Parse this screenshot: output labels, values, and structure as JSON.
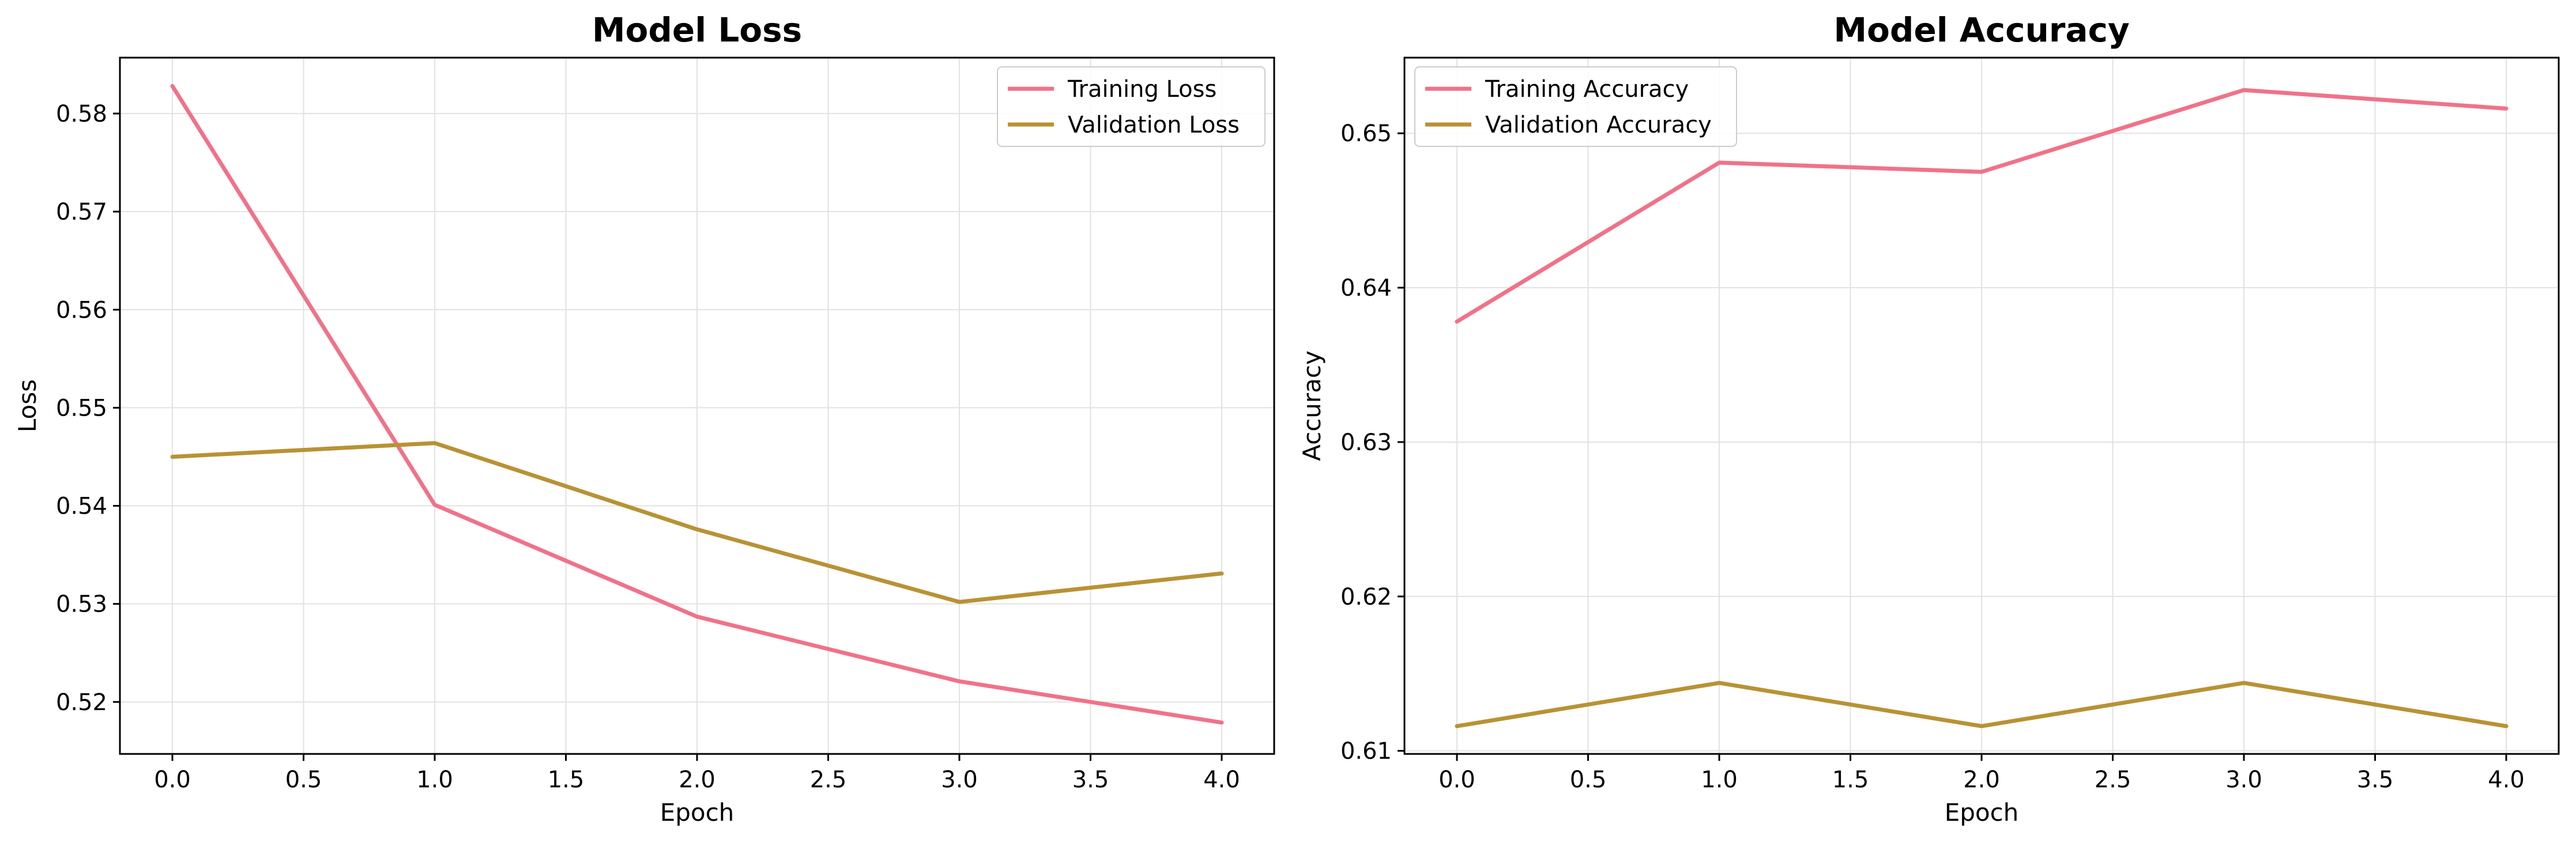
{
  "chart_data": [
    {
      "id": "loss",
      "type": "line",
      "title": "Model Loss",
      "xlabel": "Epoch",
      "ylabel": "Loss",
      "xlim": [
        -0.2,
        4.2
      ],
      "ylim": [
        0.5147,
        0.5857
      ],
      "xticks": [
        0.0,
        0.5,
        1.0,
        1.5,
        2.0,
        2.5,
        3.0,
        3.5,
        4.0
      ],
      "xtick_labels": [
        "0.0",
        "0.5",
        "1.0",
        "1.5",
        "2.0",
        "2.5",
        "3.0",
        "3.5",
        "4.0"
      ],
      "yticks": [
        0.52,
        0.53,
        0.54,
        0.55,
        0.56,
        0.57,
        0.58
      ],
      "ytick_labels": [
        "0.52",
        "0.53",
        "0.54",
        "0.55",
        "0.56",
        "0.57",
        "0.58"
      ],
      "grid": true,
      "legend_position": "top-right",
      "x": [
        0,
        1,
        2,
        3,
        4
      ],
      "series": [
        {
          "name": "Training Loss",
          "color": "#f07289",
          "values": [
            0.5828,
            0.5401,
            0.5287,
            0.5221,
            0.5179
          ]
        },
        {
          "name": "Validation Loss",
          "color": "#b89234",
          "values": [
            0.545,
            0.5464,
            0.5376,
            0.5302,
            0.5331
          ]
        }
      ]
    },
    {
      "id": "acc",
      "type": "line",
      "title": "Model Accuracy",
      "xlabel": "Epoch",
      "ylabel": "Accuracy",
      "xlim": [
        -0.2,
        4.2
      ],
      "ylim": [
        0.6098,
        0.6549
      ],
      "xticks": [
        0.0,
        0.5,
        1.0,
        1.5,
        2.0,
        2.5,
        3.0,
        3.5,
        4.0
      ],
      "xtick_labels": [
        "0.0",
        "0.5",
        "1.0",
        "1.5",
        "2.0",
        "2.5",
        "3.0",
        "3.5",
        "4.0"
      ],
      "yticks": [
        0.61,
        0.62,
        0.63,
        0.64,
        0.65
      ],
      "ytick_labels": [
        "0.61",
        "0.62",
        "0.63",
        "0.64",
        "0.65"
      ],
      "grid": true,
      "legend_position": "top-left",
      "x": [
        0,
        1,
        2,
        3,
        4
      ],
      "series": [
        {
          "name": "Training Accuracy",
          "color": "#f07289",
          "values": [
            0.6378,
            0.6481,
            0.6475,
            0.6528,
            0.6516
          ]
        },
        {
          "name": "Validation Accuracy",
          "color": "#b89234",
          "values": [
            0.6116,
            0.6144,
            0.6116,
            0.6144,
            0.6116
          ]
        }
      ]
    }
  ]
}
